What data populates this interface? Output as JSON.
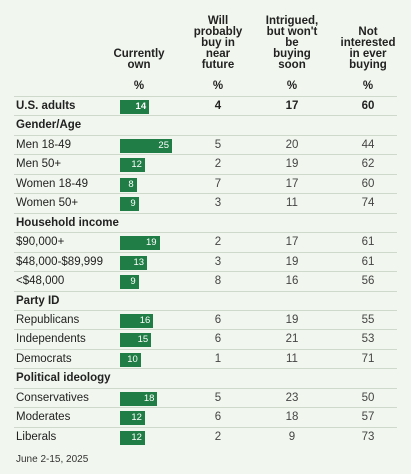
{
  "chart_data": {
    "type": "table",
    "columns": [
      {
        "label_lines": [
          "Currently",
          "own"
        ],
        "unit": "%"
      },
      {
        "label_lines": [
          "Will",
          "probably",
          "buy in",
          "near",
          "future"
        ],
        "unit": "%"
      },
      {
        "label_lines": [
          "Intrigued,",
          "but won't",
          "be",
          "buying",
          "soon"
        ],
        "unit": "%"
      },
      {
        "label_lines": [
          "Not",
          "interested",
          "in ever",
          "buying"
        ],
        "unit": "%"
      }
    ],
    "bar_scale_max": 25,
    "rows": [
      {
        "label": "U.S. adults",
        "kind": "total",
        "values": [
          14,
          4,
          17,
          60
        ]
      },
      {
        "label": "Gender/Age",
        "kind": "group"
      },
      {
        "label": "Men 18-49",
        "values": [
          25,
          5,
          20,
          44
        ]
      },
      {
        "label": "Men 50+",
        "values": [
          12,
          2,
          19,
          62
        ]
      },
      {
        "label": "Women 18-49",
        "values": [
          8,
          7,
          17,
          60
        ]
      },
      {
        "label": "Women 50+",
        "values": [
          9,
          3,
          11,
          74
        ]
      },
      {
        "label": "Household income",
        "kind": "group"
      },
      {
        "label": "$90,000+",
        "values": [
          19,
          2,
          17,
          61
        ]
      },
      {
        "label": "$48,000-$89,999",
        "values": [
          13,
          3,
          19,
          61
        ]
      },
      {
        "label": "<$48,000",
        "values": [
          9,
          8,
          16,
          56
        ]
      },
      {
        "label": "Party ID",
        "kind": "group"
      },
      {
        "label": "Republicans",
        "values": [
          16,
          6,
          19,
          55
        ]
      },
      {
        "label": "Independents",
        "values": [
          15,
          6,
          21,
          53
        ]
      },
      {
        "label": "Democrats",
        "values": [
          10,
          1,
          11,
          71
        ]
      },
      {
        "label": "Political ideology",
        "kind": "group"
      },
      {
        "label": "Conservatives",
        "values": [
          18,
          5,
          23,
          50
        ]
      },
      {
        "label": "Moderates",
        "values": [
          12,
          6,
          18,
          57
        ]
      },
      {
        "label": "Liberals",
        "values": [
          12,
          2,
          9,
          73
        ]
      }
    ],
    "bar_color": "#1f7d45"
  },
  "footnote": "June 2-15, 2025"
}
